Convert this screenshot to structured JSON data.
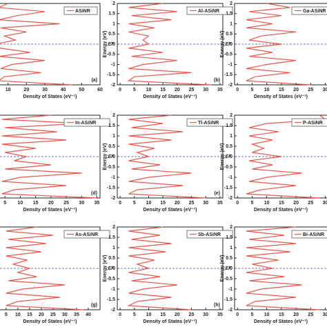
{
  "charts": [
    {
      "type": "line",
      "xlabel": "Density of States (eV⁻¹)",
      "panel_label": "(a)",
      "annotation": {
        "text": "EF",
        "y": 0
      },
      "xlim": [
        0,
        60
      ],
      "xticks": [
        10,
        20,
        30,
        40,
        50,
        60
      ],
      "ylim": [
        -2,
        2
      ],
      "y": [
        -2,
        -1.8,
        -1.6,
        -1.4,
        -1.2,
        -1,
        -0.8,
        -0.6,
        -0.4,
        -0.2,
        0,
        0.2,
        0.4,
        0.6,
        0.8,
        1,
        1.2,
        1.4,
        1.6,
        1.8,
        2
      ],
      "series": [
        {
          "name": "ASiNR",
          "color": "#e8574b",
          "values": [
            45,
            5,
            8,
            28,
            6,
            12,
            30,
            5,
            22,
            6,
            3,
            14,
            8,
            20,
            6,
            38,
            5,
            15,
            30,
            5,
            10
          ]
        }
      ]
    },
    {
      "type": "line",
      "xlabel": "Density of States (eV⁻¹)",
      "ylabel": "Energy (eV)",
      "panel_label": "(b)",
      "annotation": {
        "text": "EF",
        "y": 0
      },
      "xlim": [
        -1,
        36
      ],
      "xticks": [
        0,
        5,
        10,
        15,
        20,
        25,
        30,
        35
      ],
      "ylim": [
        -2,
        2
      ],
      "yticks": [
        -2,
        -1.5,
        -1,
        -0.5,
        0,
        0.5,
        1,
        1.5,
        2
      ],
      "y": [
        -2,
        -1.8,
        -1.6,
        -1.4,
        -1.2,
        -1,
        -0.8,
        -0.6,
        -0.4,
        -0.2,
        0,
        0.2,
        0.4,
        0.6,
        0.8,
        1,
        1.2,
        1.4,
        1.6,
        1.8,
        2
      ],
      "series": [
        {
          "name": "Al-ASiNR",
          "color": "#e8574b",
          "values": [
            32,
            3,
            5,
            25,
            3,
            8,
            20,
            4,
            15,
            3,
            10,
            8,
            10,
            3,
            12,
            3,
            18,
            4,
            20,
            3,
            15
          ]
        }
      ]
    },
    {
      "type": "line",
      "xlabel": "Density of States (eV⁻¹)",
      "ylabel": "Energy (eV)",
      "annotation": {
        "text": "EF",
        "y": 0
      },
      "xlim": [
        -1,
        36
      ],
      "xticks": [
        0,
        5,
        10,
        15,
        20,
        25,
        30
      ],
      "ylim": [
        -2,
        2
      ],
      "yticks": [
        -2,
        -1.5,
        -1,
        -0.5,
        0,
        0.5,
        1,
        1.5,
        2
      ],
      "y": [
        -2,
        -1.8,
        -1.6,
        -1.4,
        -1.2,
        -1,
        -0.8,
        -0.6,
        -0.4,
        -0.2,
        0,
        0.2,
        0.4,
        0.6,
        0.8,
        1,
        1.2,
        1.4,
        1.6,
        1.8,
        2
      ],
      "series": [
        {
          "name": "Ga-ASiNR",
          "color": "#e8574b",
          "values": [
            25,
            3,
            6,
            18,
            3,
            10,
            20,
            4,
            12,
            3,
            15,
            4,
            8,
            20,
            3,
            12,
            3,
            15,
            4,
            18,
            10
          ]
        }
      ]
    },
    {
      "type": "line",
      "xlabel": "Density of States (eV⁻¹)",
      "panel_label": "(d)",
      "annotation": {
        "text": "EF",
        "y": 0
      },
      "xlim": [
        0,
        36
      ],
      "xticks": [
        5,
        10,
        15,
        20,
        25,
        30,
        35
      ],
      "ylim": [
        -2,
        2
      ],
      "y": [
        -2,
        -1.8,
        -1.6,
        -1.4,
        -1.2,
        -1,
        -0.8,
        -0.6,
        -0.4,
        -0.2,
        0,
        0.2,
        0.4,
        0.6,
        0.8,
        1,
        1.2,
        1.4,
        1.6,
        1.8,
        2
      ],
      "series": [
        {
          "name": "In-ASiNR",
          "color": "#e8574b",
          "values": [
            35,
            4,
            8,
            25,
            4,
            10,
            30,
            5,
            20,
            8,
            12,
            5,
            15,
            4,
            25,
            4,
            22,
            5,
            30,
            4,
            20
          ]
        }
      ]
    },
    {
      "type": "line",
      "xlabel": "Density of States (eV⁻¹)",
      "ylabel": "Energy (eV)",
      "panel_label": "(e)",
      "annotation": {
        "text": "EF",
        "y": 0
      },
      "xlim": [
        -1,
        36
      ],
      "xticks": [
        0,
        5,
        10,
        15,
        20,
        25,
        30,
        35
      ],
      "ylim": [
        -2,
        2
      ],
      "yticks": [
        -2,
        -1.5,
        -1,
        -0.5,
        0,
        0.5,
        1,
        1.5,
        2
      ],
      "y": [
        -2,
        -1.8,
        -1.6,
        -1.4,
        -1.2,
        -1,
        -0.8,
        -0.6,
        -0.4,
        -0.2,
        0,
        0.2,
        0.4,
        0.6,
        0.8,
        1,
        1.2,
        1.4,
        1.6,
        1.8,
        2
      ],
      "series": [
        {
          "name": "Tl-ASiNR",
          "color": "#e8574b",
          "values": [
            30,
            3,
            6,
            22,
            3,
            10,
            25,
            4,
            14,
            3,
            10,
            6,
            12,
            3,
            18,
            3,
            22,
            4,
            15,
            3,
            18
          ]
        }
      ]
    },
    {
      "type": "line",
      "xlabel": "Density of States (eV⁻¹)",
      "ylabel": "Energy (eV)",
      "annotation": {
        "text": "EF",
        "y": 0
      },
      "xlim": [
        -1,
        36
      ],
      "xticks": [
        0,
        5,
        10,
        15,
        20,
        25,
        30
      ],
      "ylim": [
        -2,
        2
      ],
      "yticks": [
        -2,
        -1.5,
        -1,
        -0.5,
        0,
        0.5,
        1,
        1.5,
        2
      ],
      "y": [
        -2,
        -1.8,
        -1.6,
        -1.4,
        -1.2,
        -1,
        -0.8,
        -0.6,
        -0.4,
        -0.2,
        0,
        0.2,
        0.4,
        0.6,
        0.8,
        1,
        1.2,
        1.4,
        1.6,
        1.8,
        2
      ],
      "series": [
        {
          "name": "P-ASiNR",
          "color": "#e8574b",
          "values": [
            28,
            3,
            8,
            20,
            4,
            10,
            22,
            5,
            12,
            4,
            15,
            5,
            9,
            5,
            12,
            4,
            14,
            4,
            10,
            30,
            28
          ]
        }
      ]
    },
    {
      "type": "line",
      "xlabel": "Density of States (eV⁻¹)",
      "panel_label": "(g)",
      "annotation": {
        "text": "EF",
        "y": 0
      },
      "xlim": [
        -2,
        45
      ],
      "xticks": [
        5,
        10,
        15,
        20,
        25,
        30,
        35,
        40
      ],
      "ylim": [
        -2,
        2
      ],
      "y": [
        -2,
        -1.8,
        -1.6,
        -1.4,
        -1.2,
        -1,
        -0.8,
        -0.6,
        -0.4,
        -0.2,
        0,
        0.2,
        0.4,
        0.6,
        0.8,
        1,
        1.2,
        1.4,
        1.6,
        1.8,
        2
      ],
      "series": [
        {
          "name": "As-ASiNR",
          "color": "#e8574b",
          "values": [
            38,
            5,
            10,
            28,
            5,
            12,
            30,
            6,
            18,
            10,
            15,
            8,
            14,
            5,
            20,
            5,
            22,
            6,
            25,
            5,
            18
          ]
        }
      ]
    },
    {
      "type": "line",
      "xlabel": "Density of States (eV⁻¹)",
      "ylabel": "Energy (eV)",
      "panel_label": "(h)",
      "annotation": {
        "text": "EF",
        "y": 0
      },
      "xlim": [
        -1,
        36
      ],
      "xticks": [
        0,
        5,
        10,
        15,
        20,
        25,
        30,
        35
      ],
      "ylim": [
        -2,
        2
      ],
      "yticks": [
        -2,
        -1.5,
        -1,
        -0.5,
        0,
        0.5,
        1,
        1.5,
        2
      ],
      "y": [
        -2,
        -1.8,
        -1.6,
        -1.4,
        -1.2,
        -1,
        -0.8,
        -0.6,
        -0.4,
        -0.2,
        0,
        0.2,
        0.4,
        0.6,
        0.8,
        1,
        1.2,
        1.4,
        1.6,
        1.8,
        2
      ],
      "series": [
        {
          "name": "Sb-ASiNR",
          "color": "#e8574b",
          "values": [
            25,
            3,
            6,
            18,
            3,
            8,
            20,
            4,
            14,
            3,
            10,
            6,
            12,
            3,
            16,
            3,
            18,
            4,
            14,
            3,
            15
          ]
        }
      ]
    },
    {
      "type": "line",
      "xlabel": "Density of States (eV⁻¹)",
      "ylabel": "Energy (eV)",
      "annotation": {
        "text": "EF",
        "y": 0
      },
      "xlim": [
        -1,
        36
      ],
      "xticks": [
        0,
        5,
        10,
        15,
        20,
        25,
        30
      ],
      "ylim": [
        -2,
        2
      ],
      "yticks": [
        -2,
        -1.5,
        -1,
        -0.5,
        0,
        0.5,
        1,
        1.5,
        2
      ],
      "y": [
        -2,
        -1.8,
        -1.6,
        -1.4,
        -1.2,
        -1,
        -0.8,
        -0.6,
        -0.4,
        -0.2,
        0,
        0.2,
        0.4,
        0.6,
        0.8,
        1,
        1.2,
        1.4,
        1.6,
        1.8,
        2
      ],
      "series": [
        {
          "name": "Bi-ASiNR",
          "color": "#e8574b",
          "values": [
            28,
            3,
            6,
            20,
            3,
            8,
            22,
            4,
            16,
            3,
            12,
            5,
            14,
            3,
            18,
            3,
            20,
            4,
            16,
            3,
            20
          ]
        }
      ]
    }
  ]
}
